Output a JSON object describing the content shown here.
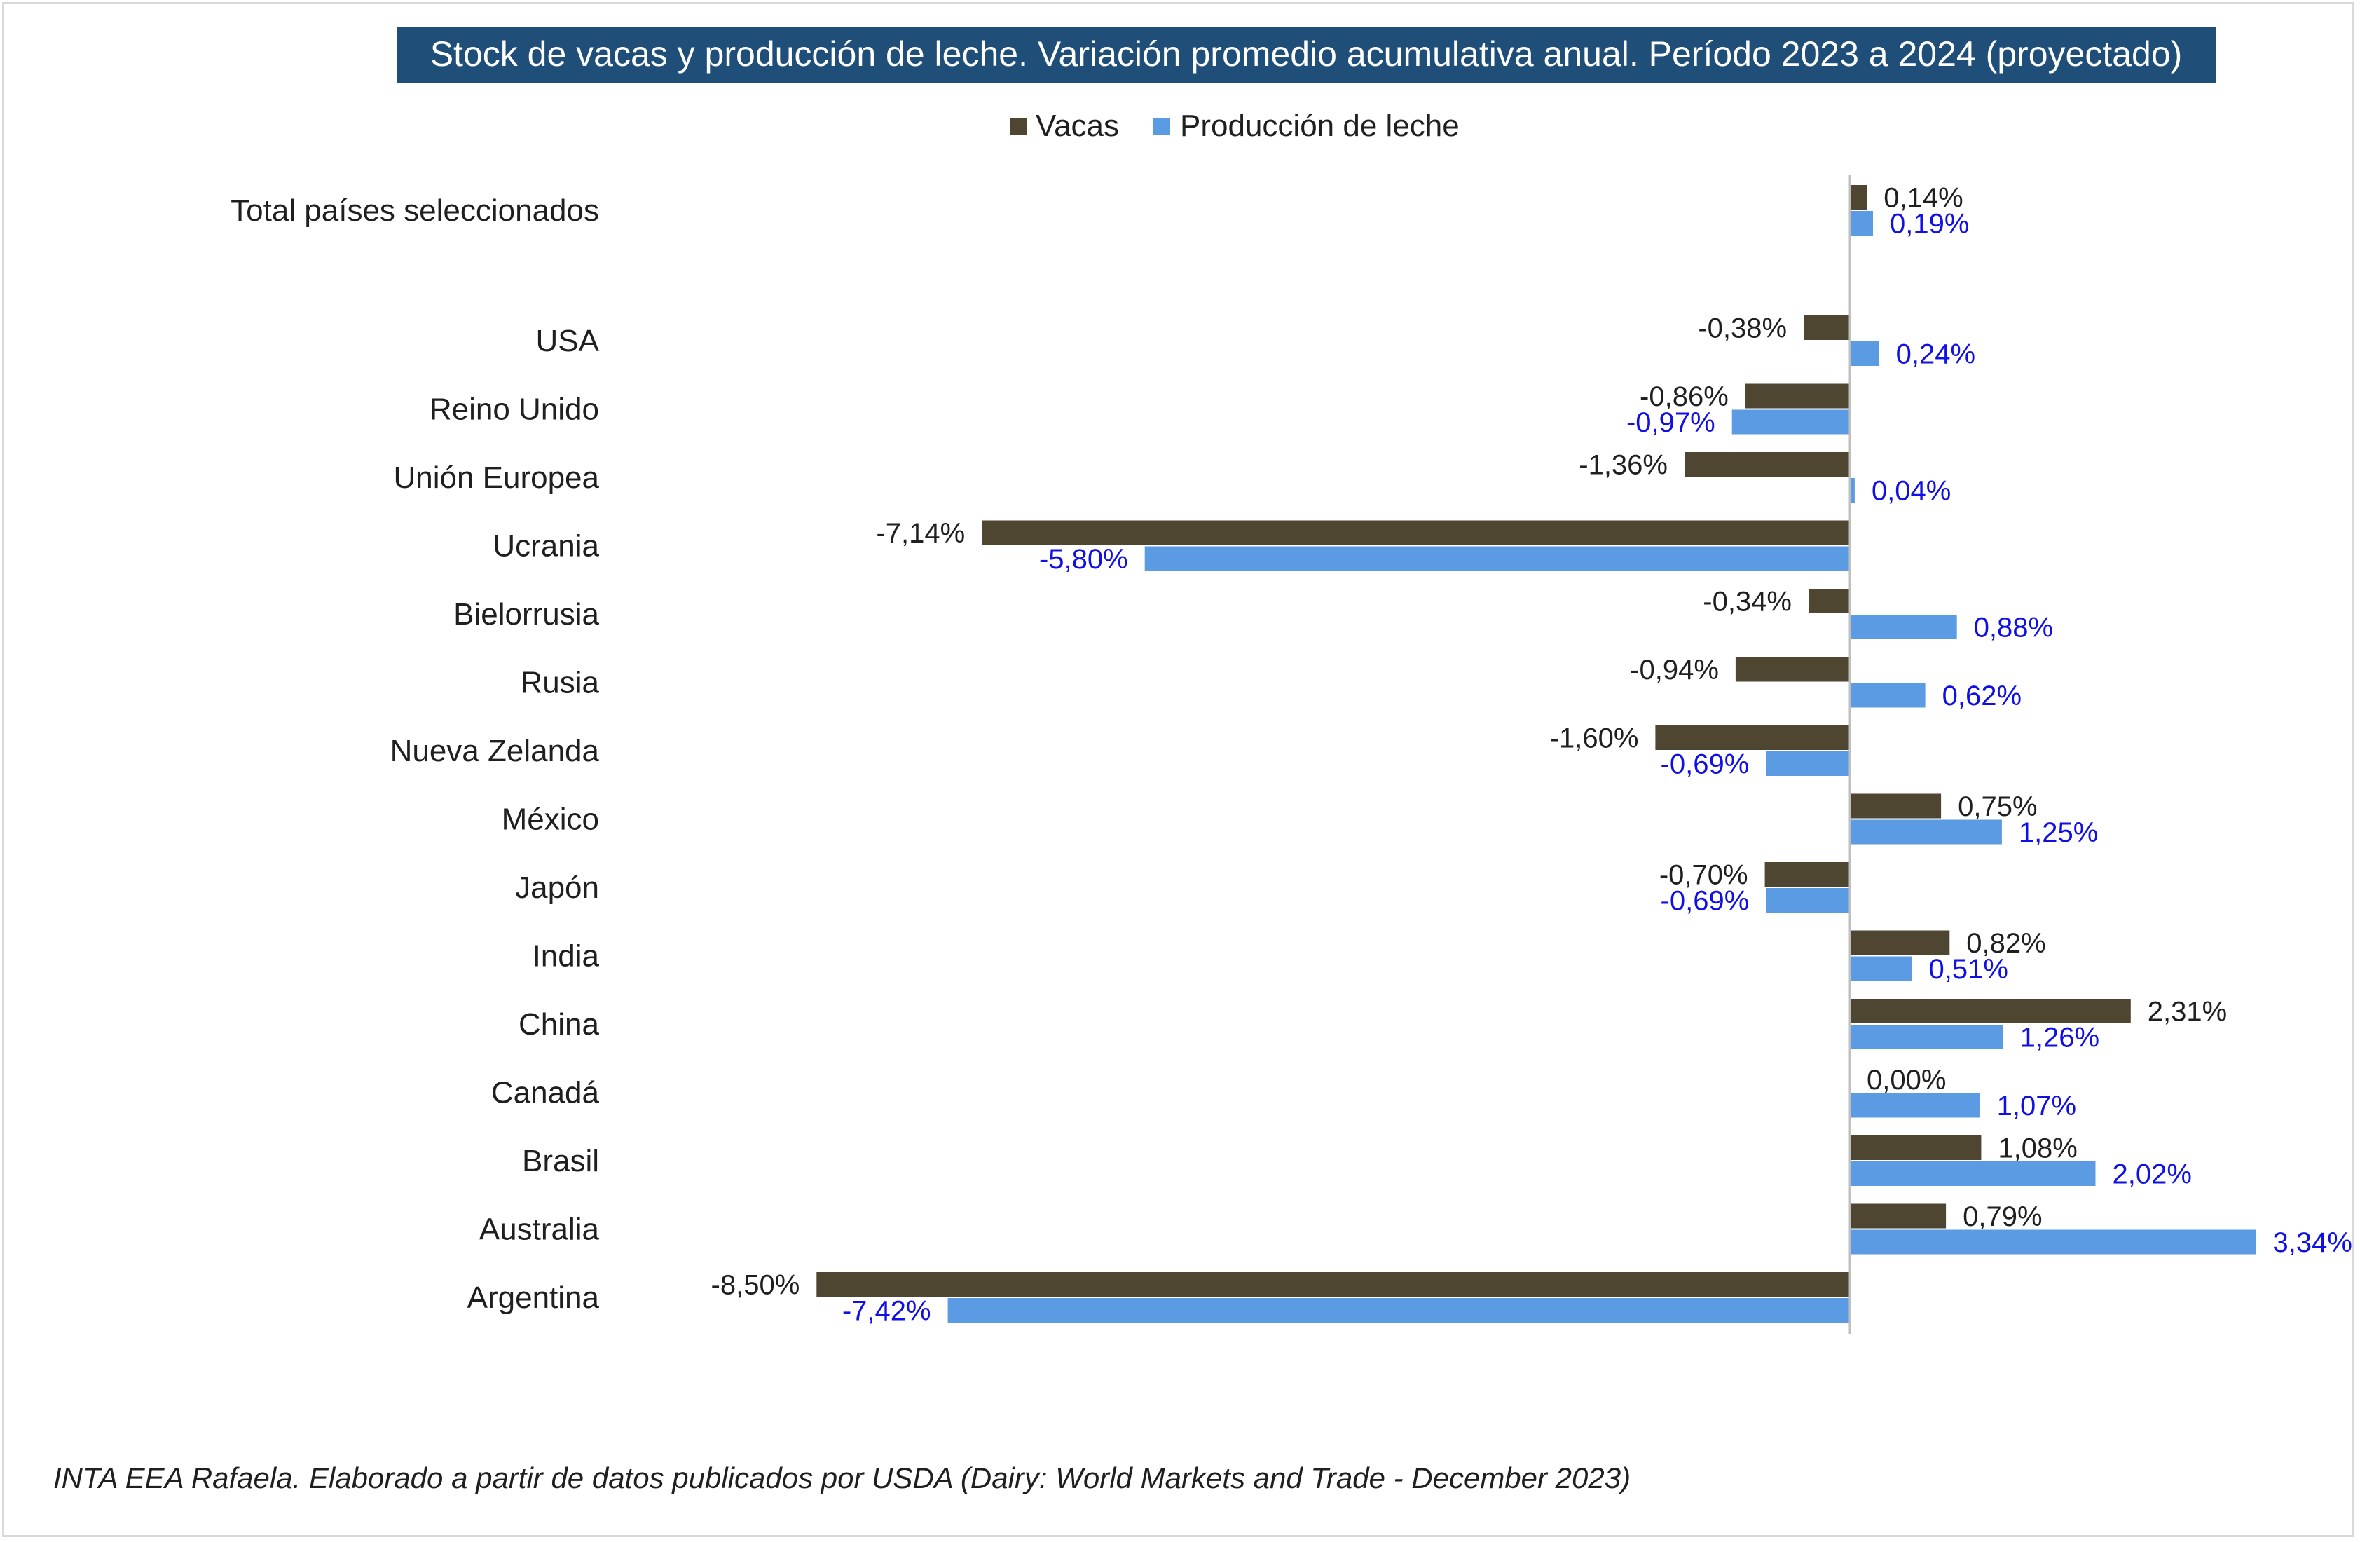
{
  "chart_data": {
    "type": "bar",
    "orientation": "horizontal",
    "title": "Stock de vacas y producción de leche. Variación promedio acumulativa anual. Período 2023 a 2024 (proyectado)",
    "legend_position": "top",
    "grid": false,
    "xlim": [
      -8.5,
      3.4
    ],
    "categories": [
      "Total países seleccionados",
      "USA",
      "Reino Unido",
      "Unión Europea",
      "Ucrania",
      "Bielorrusia",
      "Rusia",
      "Nueva Zelanda",
      "México",
      "Japón",
      "India",
      "China",
      "Canadá",
      "Brasil",
      "Australia",
      "Argentina"
    ],
    "series": [
      {
        "name": "Vacas",
        "color": "#4f4632",
        "label_color": "#1f1f1f",
        "values": [
          0.14,
          -0.38,
          -0.86,
          -1.36,
          -7.14,
          -0.34,
          -0.94,
          -1.6,
          0.75,
          -0.7,
          0.82,
          2.31,
          0.0,
          1.08,
          0.79,
          -8.5
        ],
        "labels": [
          "0,14%",
          "-0,38%",
          "-0,86%",
          "-1,36%",
          "-7,14%",
          "-0,34%",
          "-0,94%",
          "-1,60%",
          "0,75%",
          "-0,70%",
          "0,82%",
          "2,31%",
          "0,00%",
          "1,08%",
          "0,79%",
          "-8,50%"
        ]
      },
      {
        "name": "Producción de leche",
        "color": "#5b9be3",
        "label_color": "#1010e6",
        "values": [
          0.19,
          0.24,
          -0.97,
          0.04,
          -5.8,
          0.88,
          0.62,
          -0.69,
          1.25,
          -0.69,
          0.51,
          1.26,
          1.07,
          2.02,
          3.34,
          -7.42
        ],
        "labels": [
          "0,19%",
          "0,24%",
          "-0,97%",
          "0,04%",
          "-5,80%",
          "0,88%",
          "0,62%",
          "-0,69%",
          "1,25%",
          "-0,69%",
          "0,51%",
          "1,26%",
          "1,07%",
          "2,02%",
          "3,34%",
          "-7,42%"
        ]
      }
    ],
    "footnote": "INTA EEA Rafaela. Elaborado a partir de datos publicados por USDA (Dairy: World Markets and Trade - December 2023)",
    "colors": {
      "title_background": "#1f4e79",
      "axis": "#bfbfbf"
    }
  }
}
